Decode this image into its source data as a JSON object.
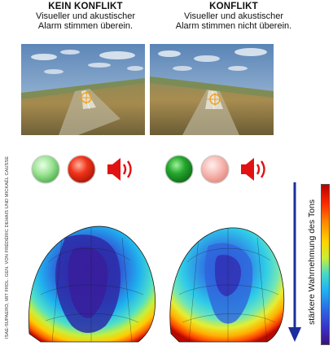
{
  "panels": [
    {
      "title": "KEIN KONFLIKT",
      "line1": "Visueller und akustischer",
      "line2": "Alarm stimmen überein."
    },
    {
      "title": "KONFLIKT",
      "line1": "Visueller und akustischer",
      "line2": "Alarm stimmen nicht überein."
    }
  ],
  "credit": "ISAE-SUPAERO, MIT FRDL. GEN. VON FRÉDÉRIC DEHAIS UND MICKAËL CAUSSE",
  "perception_label": "stärkere Wahrnehmung des Tons",
  "colors": {
    "light_green": "#8fe08a",
    "red": "#e02a10",
    "green": "#1e9a28",
    "light_red": "#f6b2aa",
    "speaker": "#e21212",
    "arrow": "#1a2f9e"
  },
  "icons": [
    "circle-light",
    "speaker-icon"
  ]
}
